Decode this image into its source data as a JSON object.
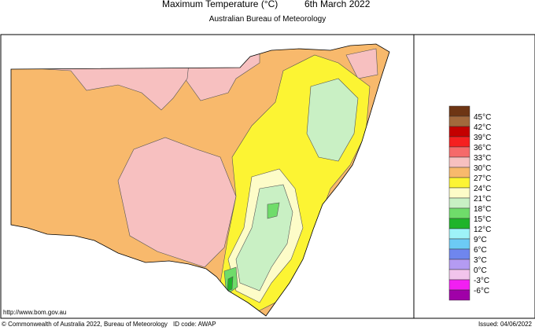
{
  "header": {
    "title": "Maximum Temperature (°C)",
    "date": "6th March 2022",
    "subtitle": "Australian Bureau of Meteorology"
  },
  "legend": {
    "swatches": [
      "#6e3514",
      "#a2683c",
      "#c40000",
      "#f52020",
      "#f56a6a",
      "#f7c0c0",
      "#f8b96c",
      "#fcf433",
      "#fdfcc8",
      "#c9f0c4",
      "#6fdc6a",
      "#1fb42a",
      "#9ef3f8",
      "#6ccaf5",
      "#6f86ee",
      "#b49bf2",
      "#f2c4ec",
      "#f21ff2",
      "#a000a8"
    ],
    "labels": [
      "45°C",
      "42°C",
      "39°C",
      "36°C",
      "33°C",
      "30°C",
      "27°C",
      "24°C",
      "21°C",
      "18°C",
      "15°C",
      "12°C",
      "9°C",
      "6°C",
      "3°C",
      "0°C",
      "-3°C",
      "-6°C"
    ]
  },
  "footer": {
    "url": "http://www.bom.gov.au",
    "copyright": "© Commonwealth of Australia 2022, Bureau of Meteorology",
    "id_code": "ID code: AWAP",
    "issued": "Issued: 04/06/2022"
  }
}
